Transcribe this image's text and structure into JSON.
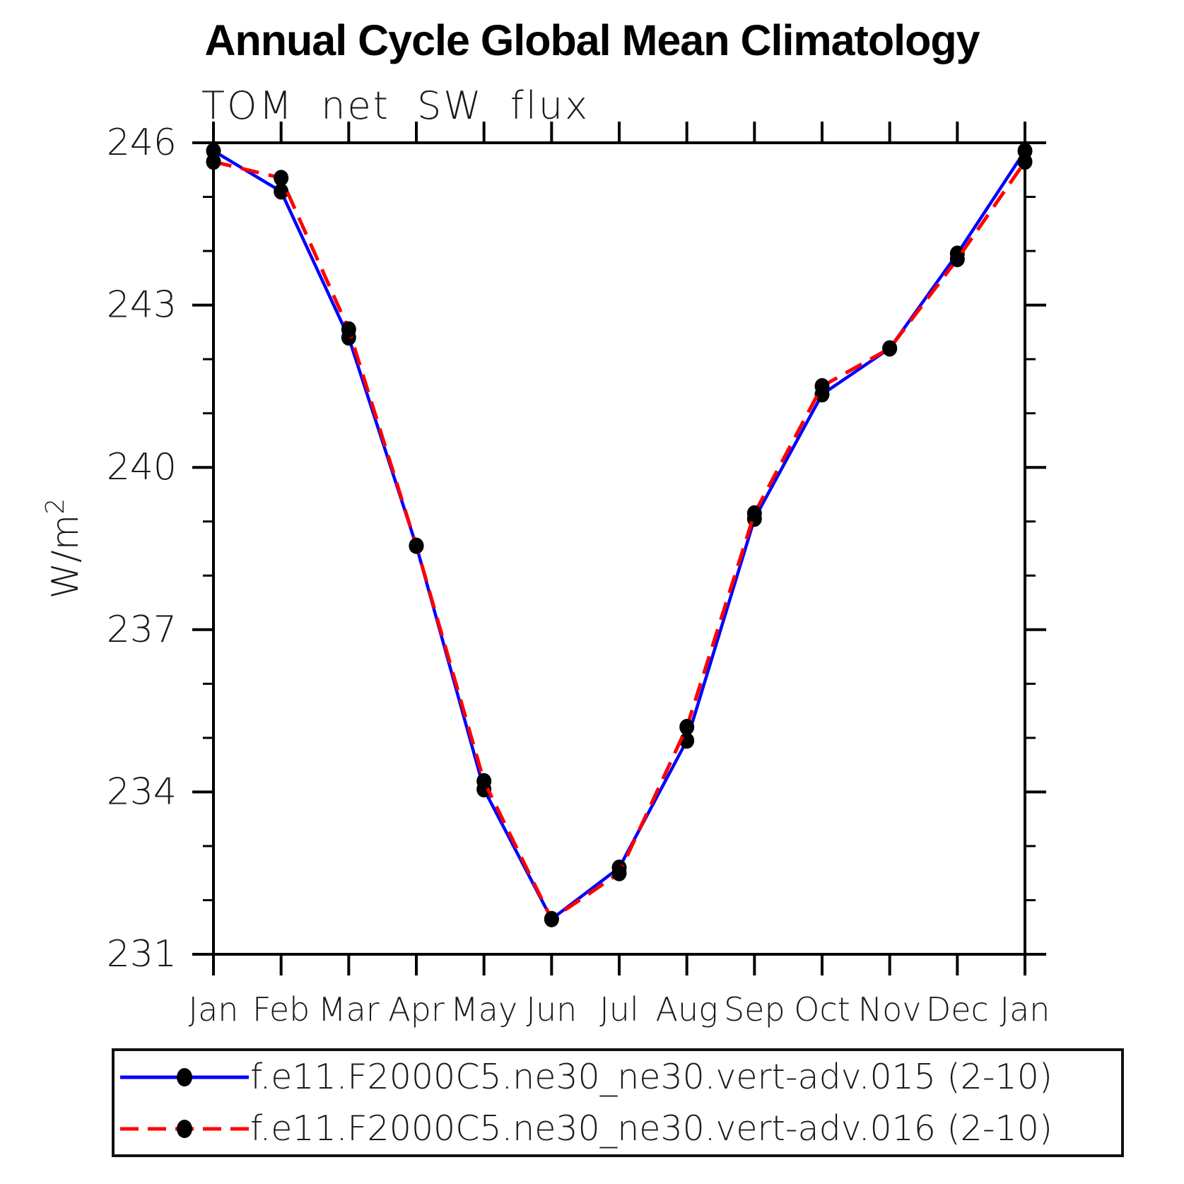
{
  "page": {
    "background": "#ffffff",
    "axis_color": "#000000",
    "text_color": "#1a1a1a"
  },
  "chart_data": {
    "type": "line",
    "title": "Annual Cycle Global Mean Climatology",
    "subtitle": "TOM net SW flux",
    "ylabel": "W/m",
    "ylabel_superscript": "2",
    "x_categories": [
      "Jan",
      "Feb",
      "Mar",
      "Apr",
      "May",
      "Jun",
      "Jul",
      "Aug",
      "Sep",
      "Oct",
      "Nov",
      "Dec",
      "Jan"
    ],
    "ylim": [
      231,
      246
    ],
    "y_ticks_major": [
      231,
      234,
      237,
      240,
      243,
      246
    ],
    "y_minor_step": 1,
    "grid": "off",
    "legend_position": "bottom",
    "marker": {
      "shape": "circle",
      "color": "#000000"
    },
    "series": [
      {
        "name": "f.e11.F2000C5.ne30_ne30.vert-adv.015 (2-10)",
        "color": "#0000ff",
        "style": "solid",
        "values": [
          245.85,
          245.1,
          242.4,
          238.55,
          234.05,
          231.65,
          232.6,
          234.95,
          239.05,
          241.35,
          242.2,
          243.95,
          245.85
        ]
      },
      {
        "name": "f.e11.F2000C5.ne30_ne30.vert-adv.016 (2-10)",
        "color": "#ff0000",
        "style": "dashed",
        "values": [
          245.65,
          245.35,
          242.55,
          238.55,
          234.2,
          231.65,
          232.5,
          235.2,
          239.15,
          241.5,
          242.2,
          243.85,
          245.65
        ]
      }
    ]
  }
}
